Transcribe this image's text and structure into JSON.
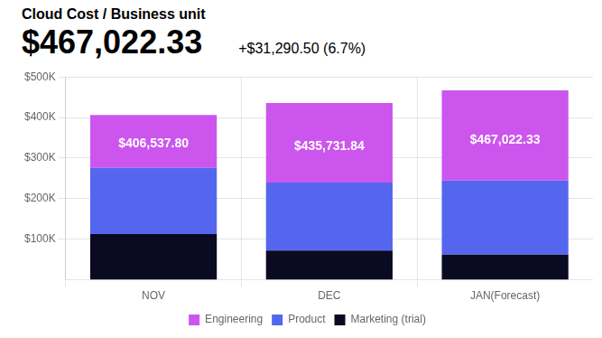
{
  "chart_data": {
    "type": "bar",
    "stacked": true,
    "title": "Cloud Cost / Business unit",
    "subtitle": "$467,022.33",
    "annotations": [
      "+$31,290.50 (6.7%)"
    ],
    "categories": [
      "NOV",
      "DEC",
      "JAN(Forecast)"
    ],
    "series": [
      {
        "name": "Marketing (trial)",
        "color": "#0a0a22",
        "values": [
          113000,
          72000,
          62000
        ]
      },
      {
        "name": "Product",
        "color": "#5566ee",
        "values": [
          163000,
          168000,
          183000
        ]
      },
      {
        "name": "Engineering",
        "color": "#cc55ee",
        "values": [
          130537.8,
          195731.84,
          222022.33
        ]
      }
    ],
    "totals": [
      406537.8,
      435731.84,
      467022.33
    ],
    "total_labels": [
      "$406,537.80",
      "$435,731.84",
      "$467,022.33"
    ],
    "ylim": [
      0,
      500000
    ],
    "yticks": [
      {
        "value": 100000,
        "label": "$100K"
      },
      {
        "value": 200000,
        "label": "$200K"
      },
      {
        "value": 300000,
        "label": "$300K"
      },
      {
        "value": 400000,
        "label": "$400K"
      },
      {
        "value": 500000,
        "label": "$500K"
      }
    ],
    "grid": true,
    "legend": "bottom"
  }
}
